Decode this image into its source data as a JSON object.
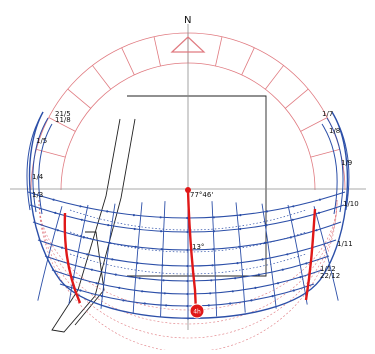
{
  "diagram": {
    "north_label": "N",
    "center_label": "77°46'",
    "noon_label": "13°",
    "sun_label": "4h",
    "date_labels": {
      "top_left": "21/5",
      "top_left_b": "11/8",
      "left_a": "1/5",
      "left_b": "1/4",
      "left_c": "1/3",
      "right_a": "1/7",
      "right_b": "1/8",
      "right_c": "1/9",
      "right_d": "1/10",
      "right_e": "1/11",
      "right_f": "1/12",
      "right_g": "22/12"
    },
    "colors": {
      "grid_pink": "#e07a80",
      "sun_path_blue": "#2c4fa8",
      "highlight_red": "#e01818",
      "axis_gray": "#8c8c8c",
      "outline_black": "#222222"
    }
  }
}
